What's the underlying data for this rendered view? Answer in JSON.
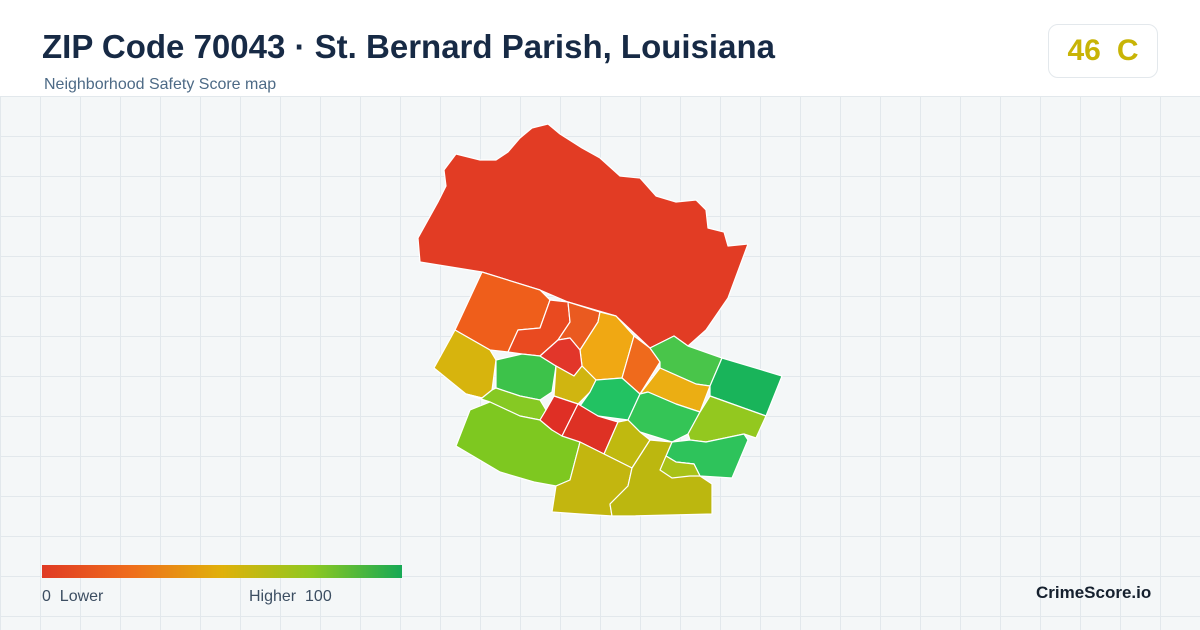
{
  "header": {
    "title": "ZIP Code 70043 · St. Bernard Parish, Louisiana",
    "subtitle": "Neighborhood Safety Score map"
  },
  "score": {
    "value": "46",
    "grade": "C",
    "color": "#c8b406"
  },
  "legend": {
    "min_value": "0",
    "min_label": "Lower",
    "max_label": "Higher",
    "max_value": "100",
    "gradient_colors": [
      "#e03a24",
      "#ef6e1c",
      "#e0b10a",
      "#8ec820",
      "#16a955"
    ]
  },
  "brand": "CrimeScore.io",
  "map": {
    "regions": [
      {
        "name": "north-industrial",
        "color": "#e23c24"
      },
      {
        "name": "west-upper",
        "color": "#ef5e1b"
      },
      {
        "name": "central-north-1",
        "color": "#e94a20"
      },
      {
        "name": "central-north-2",
        "color": "#ea5a20"
      },
      {
        "name": "central-north-3",
        "color": "#f0a813"
      },
      {
        "name": "central-east-1",
        "color": "#ef6a1c"
      },
      {
        "name": "west-middle",
        "color": "#d7b40d"
      },
      {
        "name": "central-park",
        "color": "#3dc24a"
      },
      {
        "name": "central-mid",
        "color": "#e2362a"
      },
      {
        "name": "central-small",
        "color": "#d0b510"
      },
      {
        "name": "east-mid-1",
        "color": "#22c262"
      },
      {
        "name": "east-upper-1",
        "color": "#49c54a"
      },
      {
        "name": "east-upper-2",
        "color": "#19b45a"
      },
      {
        "name": "east-mid-2",
        "color": "#ebae13"
      },
      {
        "name": "east-mid-3",
        "color": "#34c556"
      },
      {
        "name": "east-lower-1",
        "color": "#93c81f"
      },
      {
        "name": "east-lower-2",
        "color": "#2ec35b"
      },
      {
        "name": "west-lower-1",
        "color": "#86c923"
      },
      {
        "name": "west-lower-2",
        "color": "#7ec820"
      },
      {
        "name": "central-low-1",
        "color": "#df2f25"
      },
      {
        "name": "central-low-2",
        "color": "#de3124"
      },
      {
        "name": "central-low-3",
        "color": "#c0b90f"
      },
      {
        "name": "south-1",
        "color": "#c3b60f"
      },
      {
        "name": "south-2",
        "color": "#bcb70f"
      },
      {
        "name": "south-3",
        "color": "#a9c218"
      }
    ]
  }
}
